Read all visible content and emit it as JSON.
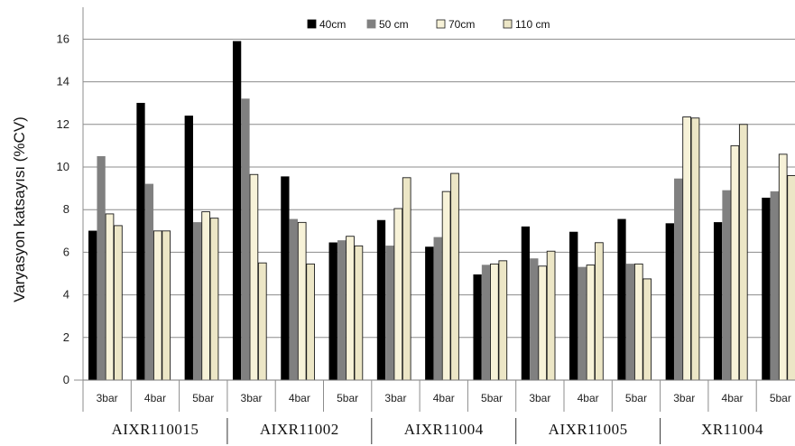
{
  "chart_data": {
    "type": "bar",
    "ylabel": "Varyasyon katsayısı (%CV)",
    "xlabel": "",
    "title": "",
    "ylim": [
      0,
      17.5
    ],
    "yticks": [
      0,
      2,
      4,
      6,
      8,
      10,
      12,
      14,
      16
    ],
    "grid": "horizontal",
    "legend_position": "top",
    "groups": [
      "AIXR110015",
      "AIXR11002",
      "AIXR11004",
      "AIXR11005",
      "XR11004"
    ],
    "subcategories": [
      "3bar",
      "4bar",
      "5bar"
    ],
    "series": [
      {
        "name": "40cm",
        "color": "#000000",
        "values": [
          7.0,
          13.0,
          12.4,
          15.9,
          9.55,
          6.45,
          7.5,
          6.25,
          4.95,
          7.2,
          6.95,
          7.55,
          7.35,
          7.4,
          8.55
        ]
      },
      {
        "name": "50 cm",
        "color": "#808080",
        "values": [
          10.5,
          9.2,
          7.4,
          13.2,
          7.55,
          6.55,
          6.3,
          6.7,
          5.4,
          5.7,
          5.3,
          5.45,
          9.45,
          8.9,
          8.85
        ]
      },
      {
        "name": "70cm",
        "color": "#f7f2d8",
        "values": [
          7.8,
          7.0,
          7.9,
          9.65,
          7.4,
          6.75,
          8.05,
          8.85,
          5.45,
          5.35,
          5.4,
          5.45,
          12.35,
          11.0,
          10.6
        ]
      },
      {
        "name": "110 cm",
        "color": "#ece6c6",
        "values": [
          7.25,
          7.0,
          7.6,
          5.5,
          5.45,
          6.3,
          9.5,
          9.7,
          5.6,
          6.05,
          6.45,
          4.75,
          12.3,
          12.0,
          9.6
        ]
      }
    ]
  }
}
